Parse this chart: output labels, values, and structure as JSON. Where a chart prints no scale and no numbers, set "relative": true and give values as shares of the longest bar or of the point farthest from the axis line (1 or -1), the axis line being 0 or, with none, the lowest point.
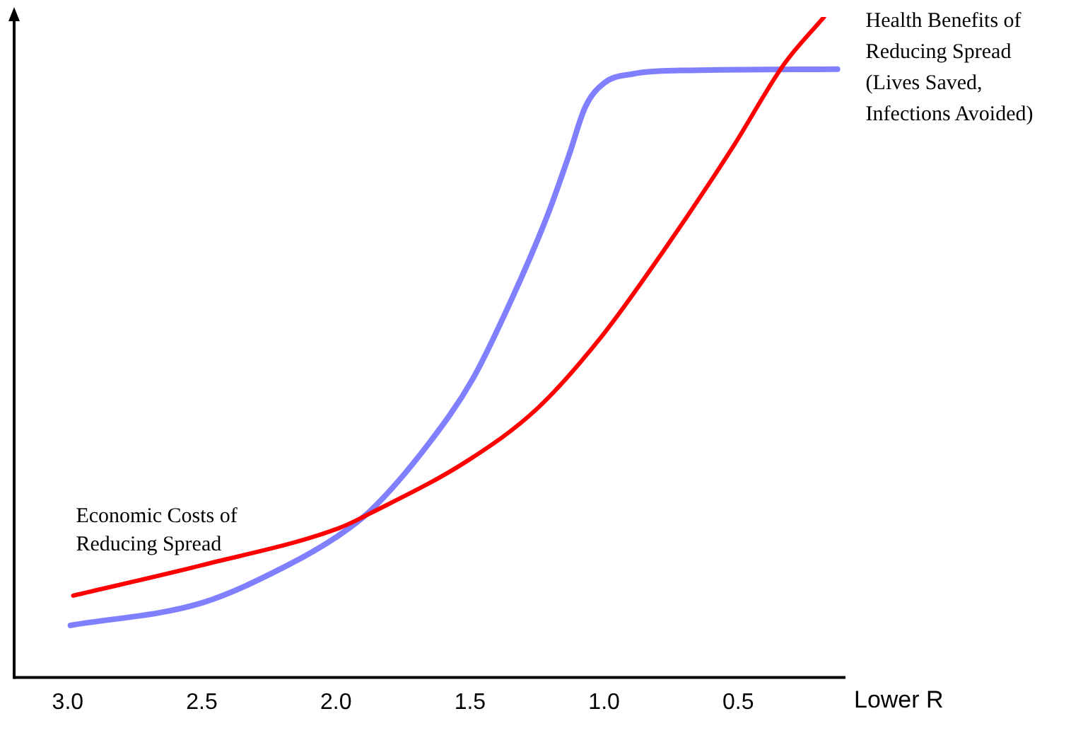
{
  "chart_data": {
    "type": "line",
    "relative": true,
    "xlabel": "Lower R",
    "xlim": [
      3.2,
      0.1
    ],
    "xticks": [
      {
        "value": 3,
        "label": "3.0"
      },
      {
        "value": 2.5,
        "label": "2.5"
      },
      {
        "value": 2,
        "label": "2.0"
      },
      {
        "value": 1.5,
        "label": "1.5"
      },
      {
        "value": 1,
        "label": "1.0"
      },
      {
        "value": 0.5,
        "label": "0.5"
      }
    ],
    "tick_labels": "x",
    "grid": false,
    "legend": false,
    "marker": "none",
    "line_style": "solid",
    "series": [
      {
        "name": "Economic Costs of\nReducing Spread",
        "color": "#ff0000",
        "x": [
          2.98,
          2.5,
          1.99,
          1.87,
          1.51,
          1.25,
          1.01,
          0.78,
          0.52,
          0.33,
          0.18
        ],
        "values": [
          0.124,
          0.17,
          0.226,
          0.249,
          0.328,
          0.407,
          0.516,
          0.645,
          0.803,
          0.928,
          1.0
        ]
      },
      {
        "name": "Health Benefits of\nReducing Spread\n(Lives Saved,\nInfections Avoided)",
        "color": "#8080ff",
        "x": [
          2.99,
          2.5,
          2.18,
          1.99,
          1.87,
          1.66,
          1.49,
          1.34,
          1.21,
          1.13,
          1.07,
          1.0,
          0.89,
          0.71,
          0.13
        ],
        "values": [
          0.079,
          0.113,
          0.17,
          0.215,
          0.253,
          0.351,
          0.452,
          0.577,
          0.701,
          0.792,
          0.864,
          0.9,
          0.914,
          0.919,
          0.921
        ]
      }
    ]
  }
}
